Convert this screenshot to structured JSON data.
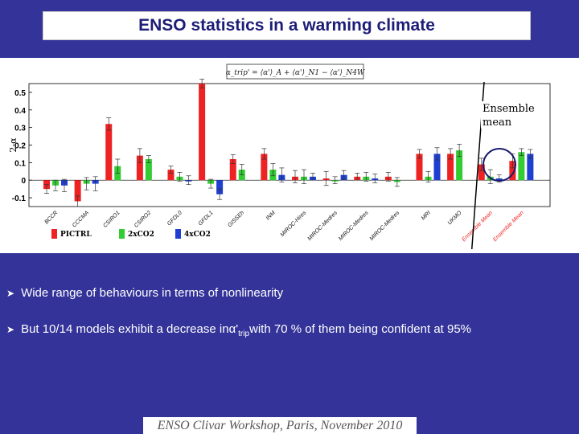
{
  "slide": {
    "title": "ENSO statistics in a warming climate",
    "footer": "ENSO Clivar Workshop, Paris, November 2010",
    "bullets": {
      "b1": "Wide range of behaviours in terms of nonlinearity",
      "b2_pre": "But 10/14 models exhibit a decrease in ",
      "b2_alpha": "α'",
      "b2_sub": "trip",
      "b2_post": " with 70 % of them being confident at 95%"
    },
    "formula": "α_trip' = ⟨α'⟩_A + ⟨α'⟩_N1 − ⟨α'⟩_N4W"
  },
  "colors": {
    "background": "#333399",
    "picntrl": "#ee2222",
    "x2co2": "#33cc33",
    "x4co2": "#1f3fd0",
    "ensemble_outline": "#1a1a6e"
  },
  "chart_data": {
    "type": "bar",
    "title": "",
    "ylabel": "2-α",
    "ylim": [
      -0.15,
      0.55
    ],
    "yticks": [
      -0.1,
      0,
      0.1,
      0.2,
      0.3,
      0.4,
      0.5
    ],
    "ytick_labels": [
      "-0.1",
      "0",
      "0.1",
      "0.2",
      "0.3",
      "0.4",
      "0.5"
    ],
    "legend": [
      "PICTRL",
      "2xCO2",
      "4xCO2"
    ],
    "ensemble_label": "Ensemble mean",
    "categories": [
      "BCCR",
      "CCCMA",
      "CSIRO1",
      "CSIRO2",
      "GFDL0",
      "GFDL1",
      "GISSEh",
      "INM",
      "MIROC-Hires",
      "MIROC-Medres",
      "MIROC-Medres",
      "MIROC-Medres",
      "MRI",
      "UKMO",
      "Ensemble Mean",
      "Ensemble Mean"
    ],
    "series": [
      {
        "name": "PICTRL",
        "values": [
          -0.05,
          -0.12,
          0.32,
          0.14,
          0.06,
          0.55,
          0.12,
          0.15,
          0.02,
          0.01,
          0.02,
          0.02,
          0.15,
          0.15,
          0.09,
          0.11
        ]
      },
      {
        "name": "2xCO2",
        "values": [
          -0.03,
          -0.02,
          0.08,
          0.12,
          0.02,
          -0.02,
          0.06,
          0.06,
          0.02,
          0.0,
          0.02,
          -0.01,
          0.02,
          0.17,
          0.02,
          0.16
        ]
      },
      {
        "name": "4xCO2",
        "values": [
          -0.03,
          -0.02,
          null,
          null,
          0.0,
          -0.08,
          null,
          0.03,
          0.02,
          0.03,
          0.01,
          null,
          0.15,
          null,
          0.01,
          0.15
        ]
      }
    ]
  }
}
